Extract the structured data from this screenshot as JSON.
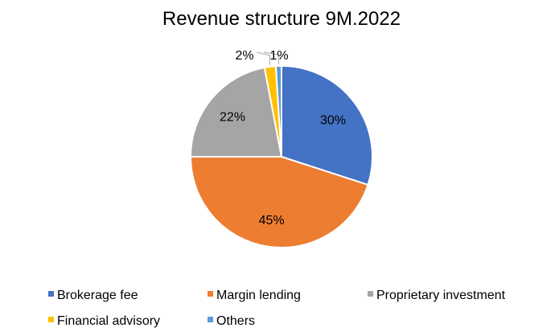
{
  "chart_data": {
    "type": "pie",
    "title": "Revenue structure 9M.2022",
    "slices": [
      {
        "label": "Brokerage fee",
        "value": 30,
        "display": "30%",
        "color": "#4472C4"
      },
      {
        "label": "Margin lending",
        "value": 45,
        "display": "45%",
        "color": "#ED7D31"
      },
      {
        "label": "Proprietary investment",
        "value": 22,
        "display": "22%",
        "color": "#A5A5A5"
      },
      {
        "label": "Financial advisory",
        "value": 2,
        "display": "2%",
        "color": "#FFC000"
      },
      {
        "label": "Others",
        "value": 1,
        "display": "1%",
        "color": "#5B9BD5"
      }
    ],
    "legend_position": "bottom"
  }
}
